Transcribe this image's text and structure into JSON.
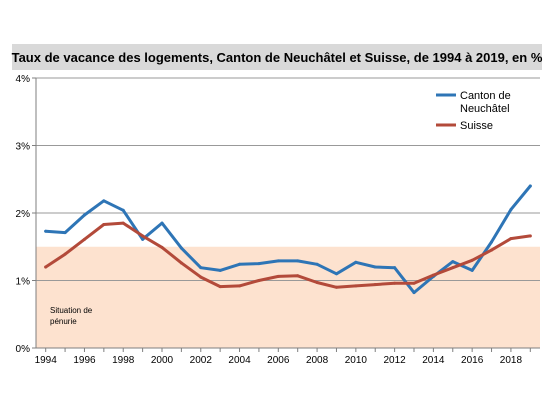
{
  "chart_data": {
    "type": "line",
    "title": "Taux de vacance des logements, Canton de Neuchâtel et Suisse, de 1994 à 2019, en %",
    "xlabel": "",
    "ylabel": "",
    "x": [
      1994,
      1995,
      1996,
      1997,
      1998,
      1999,
      2000,
      2001,
      2002,
      2003,
      2004,
      2005,
      2006,
      2007,
      2008,
      2009,
      2010,
      2011,
      2012,
      2013,
      2014,
      2015,
      2016,
      2017,
      2018,
      2019
    ],
    "x_tick_labels": [
      "1994",
      "1996",
      "1998",
      "2000",
      "2002",
      "2004",
      "2006",
      "2008",
      "2010",
      "2012",
      "2014",
      "2016",
      "2018"
    ],
    "y_tick_labels": [
      "0%",
      "1%",
      "2%",
      "3%",
      "4%"
    ],
    "ylim": [
      0,
      4
    ],
    "xlim": [
      1993.5,
      2019.5
    ],
    "grid": "horizontal",
    "legend_position": "top-right",
    "series": [
      {
        "name_lines": [
          "Canton de",
          "Neuchâtel"
        ],
        "color": "#2e75b6",
        "values": [
          1.73,
          1.71,
          1.97,
          2.18,
          2.04,
          1.61,
          1.85,
          1.48,
          1.19,
          1.15,
          1.24,
          1.25,
          1.29,
          1.29,
          1.24,
          1.1,
          1.27,
          1.2,
          1.19,
          0.82,
          1.06,
          1.28,
          1.15,
          1.57,
          2.05,
          2.4
        ]
      },
      {
        "name": "Suisse",
        "color": "#b34a3a",
        "values": [
          1.2,
          1.39,
          1.61,
          1.83,
          1.85,
          1.66,
          1.49,
          1.26,
          1.05,
          0.91,
          0.92,
          1.0,
          1.06,
          1.07,
          0.97,
          0.9,
          0.92,
          0.94,
          0.96,
          0.96,
          1.08,
          1.19,
          1.3,
          1.45,
          1.62,
          1.66
        ]
      }
    ],
    "shortage_band": {
      "label_lines": [
        "Situation de",
        "pénurie"
      ],
      "from": 0,
      "to": 1.5,
      "color": "#fde2cf"
    },
    "colors": {
      "grid": "#999999",
      "axis": "#7f7f7f",
      "title_band": "#d9d9d9"
    }
  }
}
